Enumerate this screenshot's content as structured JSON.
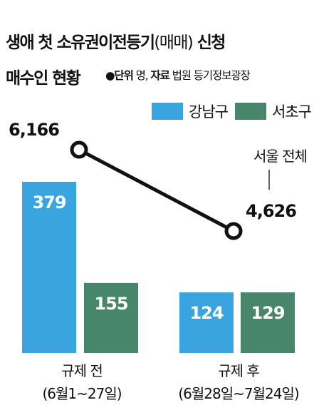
{
  "title": {
    "line1_main": "생애 첫 소유권이전등기",
    "line1_paren": "(매매)",
    "line1_tail": "신청",
    "line2": "매수인 현황"
  },
  "meta": {
    "unit_label": "●단위",
    "unit_value": "명,",
    "source_label": "자료",
    "source_value": "법원 등기정보광장"
  },
  "colors": {
    "gangnam": "#3aa4df",
    "seocho": "#47866b",
    "line": "#111111"
  },
  "chart_data": {
    "type": "bar",
    "categories": [
      "규제 전",
      "규제 후"
    ],
    "category_sublabels": [
      "(6월1~27일)",
      "(6월28일~7월24일)"
    ],
    "series": [
      {
        "name": "강남구",
        "values": [
          379,
          124
        ]
      },
      {
        "name": "서초구",
        "values": [
          155,
          129
        ]
      }
    ],
    "line_series": {
      "name": "서울 전체",
      "values": [
        6166,
        4626
      ],
      "labels": [
        "6,166",
        "4,626"
      ]
    },
    "bar_labels": {
      "강남구": [
        "379",
        "124"
      ],
      "서초구": [
        "155",
        "129"
      ]
    },
    "xlabel": "",
    "ylabel": "",
    "grid": false,
    "legend_position": "top-right"
  }
}
